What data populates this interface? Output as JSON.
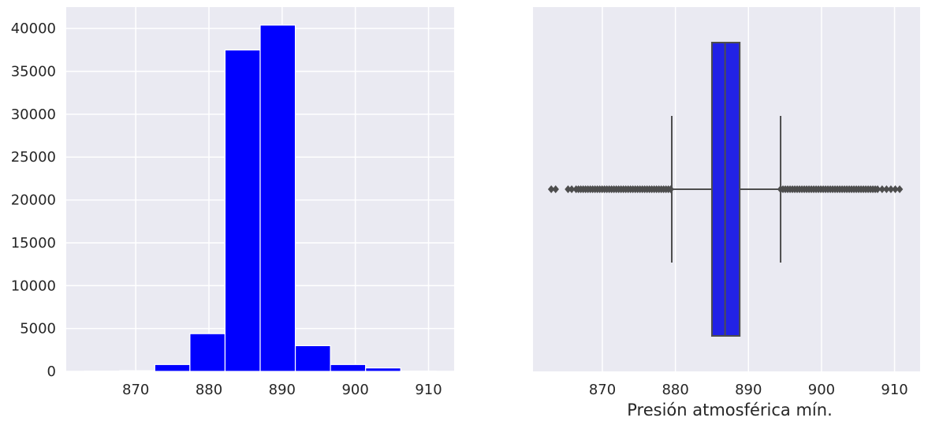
{
  "chart_data": [
    {
      "type": "bar",
      "subtype": "histogram",
      "title": "",
      "xlabel": "",
      "ylabel": "",
      "color": "#0000ff",
      "bins": [
        {
          "x0": 863.0,
          "x1": 867.8,
          "count": 20
        },
        {
          "x0": 867.8,
          "x1": 872.6,
          "count": 80
        },
        {
          "x0": 872.6,
          "x1": 877.4,
          "count": 800
        },
        {
          "x0": 877.4,
          "x1": 882.2,
          "count": 4400
        },
        {
          "x0": 882.2,
          "x1": 887.0,
          "count": 37500
        },
        {
          "x0": 887.0,
          "x1": 891.8,
          "count": 40400
        },
        {
          "x0": 891.8,
          "x1": 896.6,
          "count": 3000
        },
        {
          "x0": 896.6,
          "x1": 901.4,
          "count": 800
        },
        {
          "x0": 901.4,
          "x1": 906.2,
          "count": 400
        },
        {
          "x0": 906.2,
          "x1": 911.0,
          "count": 40
        }
      ],
      "xlim": [
        860.5,
        913.5
      ],
      "ylim": [
        0,
        42500
      ],
      "xticks": [
        870,
        880,
        890,
        900,
        910
      ],
      "yticks": [
        0,
        5000,
        10000,
        15000,
        20000,
        25000,
        30000,
        35000,
        40000
      ],
      "grid": true,
      "background": "#eaeaf2"
    },
    {
      "type": "box",
      "title": "",
      "xlabel": "Presión atmosférica mín.",
      "ylabel": "",
      "color": "#2222e6",
      "line_color": "#4d4d4d",
      "whisker_low": 879.5,
      "q1": 885.0,
      "median": 886.8,
      "q3": 888.8,
      "whisker_high": 894.4,
      "outliers_low_range": [
        866.4,
        879.5
      ],
      "outliers_high_range": [
        894.4,
        907.9
      ],
      "outliers_sparse": [
        863.0,
        863.6,
        865.3,
        865.8,
        908.3,
        908.9,
        909.5,
        910.1,
        910.7
      ],
      "xlim": [
        860.5,
        913.5
      ],
      "xticks": [
        870,
        880,
        890,
        900,
        910
      ],
      "grid": true,
      "background": "#eaeaf2"
    }
  ]
}
